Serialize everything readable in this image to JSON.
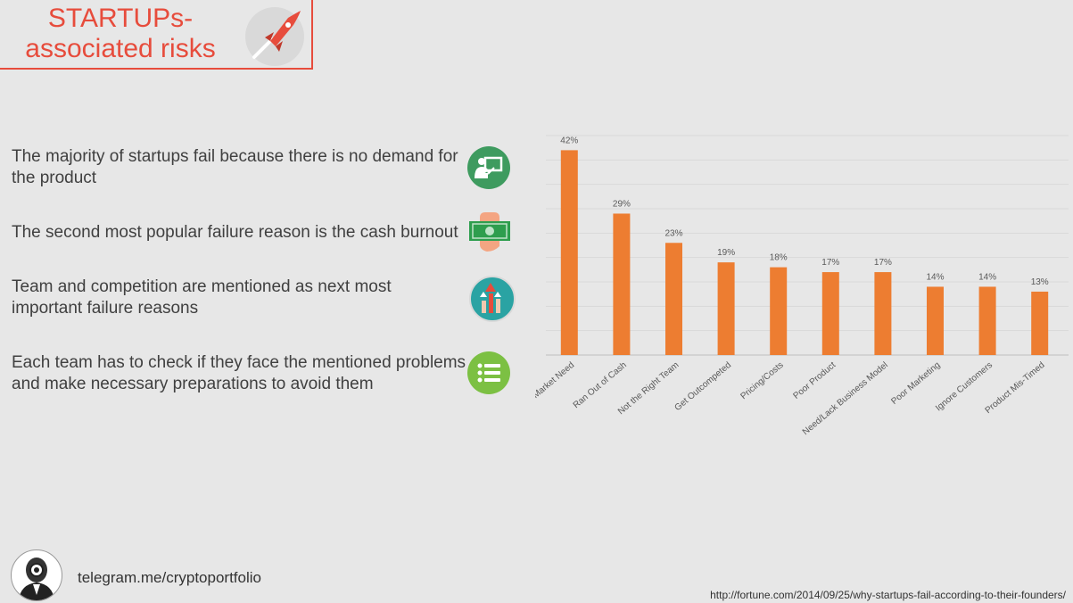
{
  "header": {
    "title_line1": "STARTUPs-",
    "title_line2": "associated risks"
  },
  "bullets": [
    {
      "text": "The majority of startups fail because there is no demand for the product",
      "icon": "presentation-icon",
      "color": "#3e9b5f"
    },
    {
      "text": "The second most popular failure reason is the cash burnout",
      "icon": "cash-hand-icon",
      "color": "#2e9e4e"
    },
    {
      "text": "Team and competition are mentioned as next most important failure reasons",
      "icon": "growth-arrows-icon",
      "color": "#2aa3a3"
    },
    {
      "text": "Each team has to check if they face the mentioned problems and make necessary preparations to avoid them",
      "icon": "list-icon",
      "color": "#7cc043"
    }
  ],
  "footer": {
    "telegram": "telegram.me/cryptoportfolio",
    "source": "http://fortune.com/2014/09/25/why-startups-fail-according-to-their-founders/"
  },
  "chart_data": {
    "type": "bar",
    "categories": [
      "No Market Need",
      "Ran Out of Cash",
      "Not the Right Team",
      "Get Outcompeted",
      "Pricing/Costs",
      "Poor Product",
      "Need/Lack Business Model",
      "Poor Marketing",
      "Ignore Customers",
      "Product Mis-Timed"
    ],
    "values": [
      42,
      29,
      23,
      19,
      18,
      17,
      17,
      14,
      14,
      13
    ],
    "labels": [
      "42%",
      "29%",
      "23%",
      "19%",
      "18%",
      "17%",
      "17%",
      "14%",
      "14%",
      "13%"
    ],
    "ylim": [
      0,
      45
    ],
    "grid": true,
    "bar_color": "#ed7d31",
    "title": "",
    "xlabel": "",
    "ylabel": ""
  }
}
